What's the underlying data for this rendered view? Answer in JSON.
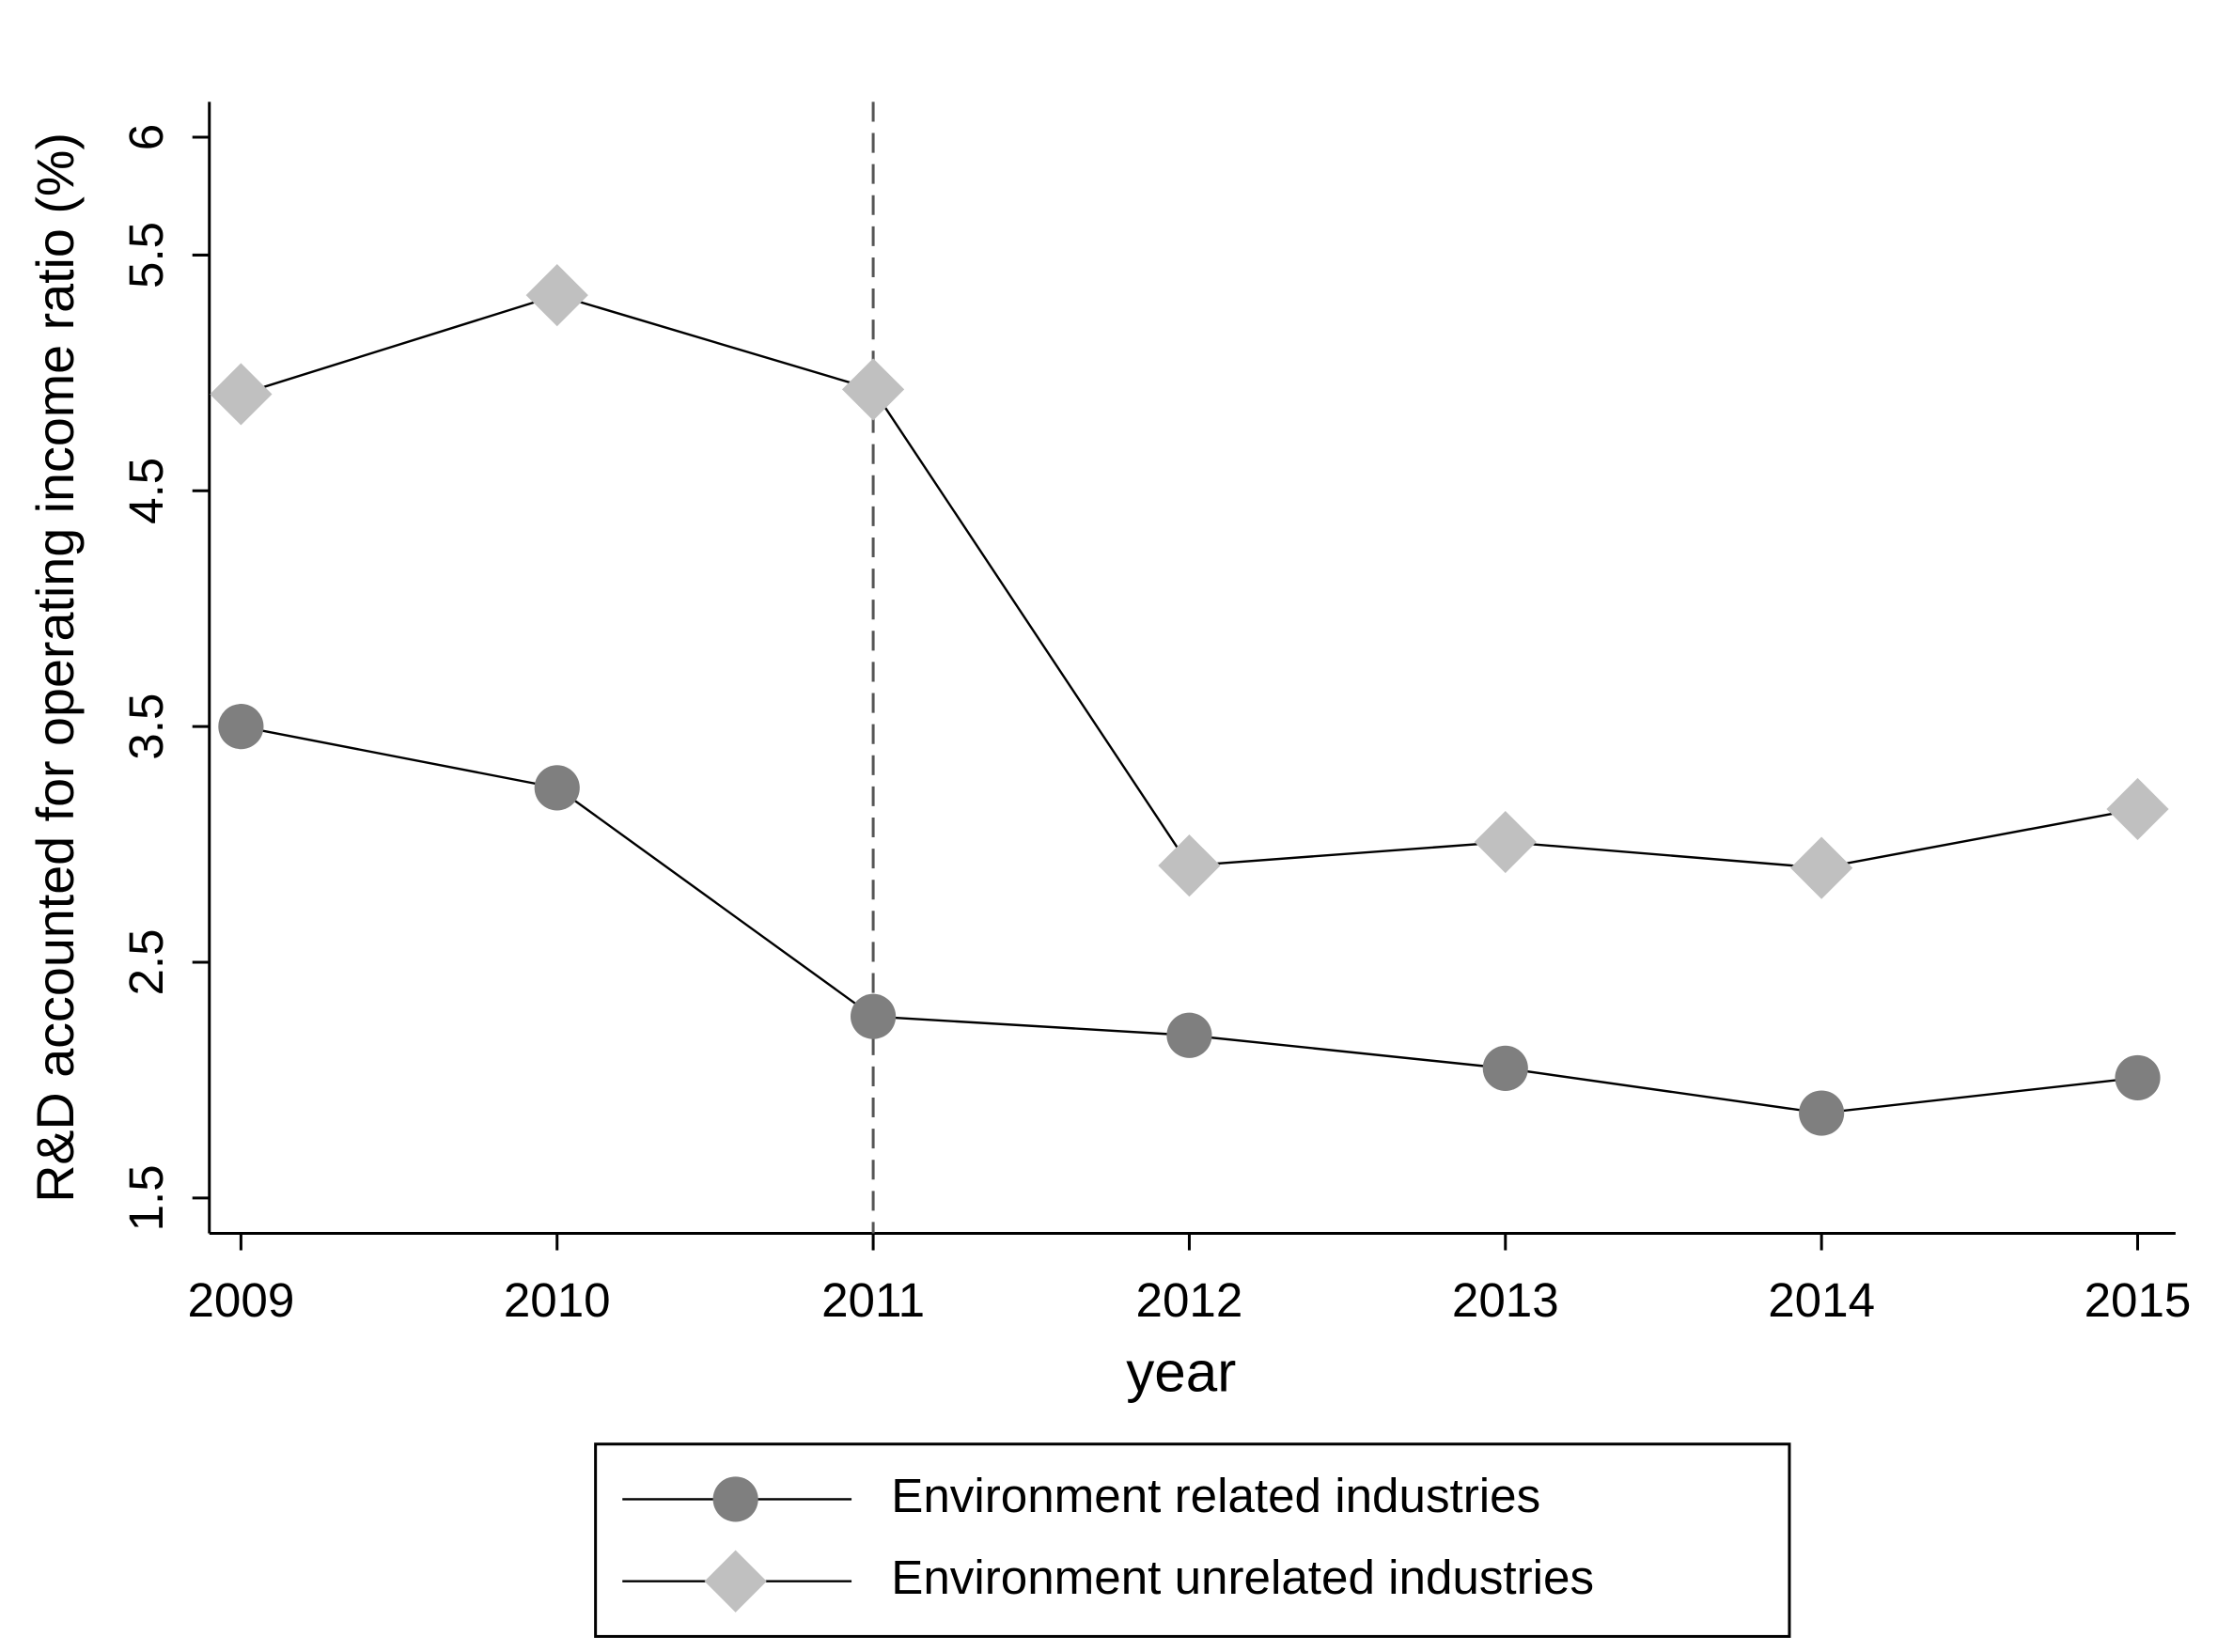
{
  "chart_data": {
    "type": "line",
    "x_label": "year",
    "y_label": "R&D accounted for operating income ratio (%)",
    "x": [
      2009,
      2010,
      2011,
      2012,
      2013,
      2014,
      2015
    ],
    "series": [
      {
        "name": "Environment related industries",
        "color": "#7f7f7f",
        "marker": "circle",
        "values": [
          3.5,
          3.24,
          2.27,
          2.19,
          2.05,
          1.86,
          2.01
        ]
      },
      {
        "name": "Environment unrelated industries",
        "color": "#c0c0c0",
        "marker": "diamond",
        "values": [
          4.91,
          5.33,
          4.93,
          2.91,
          3.01,
          2.9,
          3.15
        ]
      }
    ],
    "xlim": [
      2008.9,
      2015.12
    ],
    "xticks": [
      2009,
      2010,
      2011,
      2012,
      2013,
      2014,
      2015
    ],
    "ylim": [
      1.35,
      6.15
    ],
    "yticks": [
      1.5,
      2.5,
      3.5,
      4.5,
      5.5,
      6
    ],
    "reference_line_x": 2011,
    "legend": "bottom"
  }
}
